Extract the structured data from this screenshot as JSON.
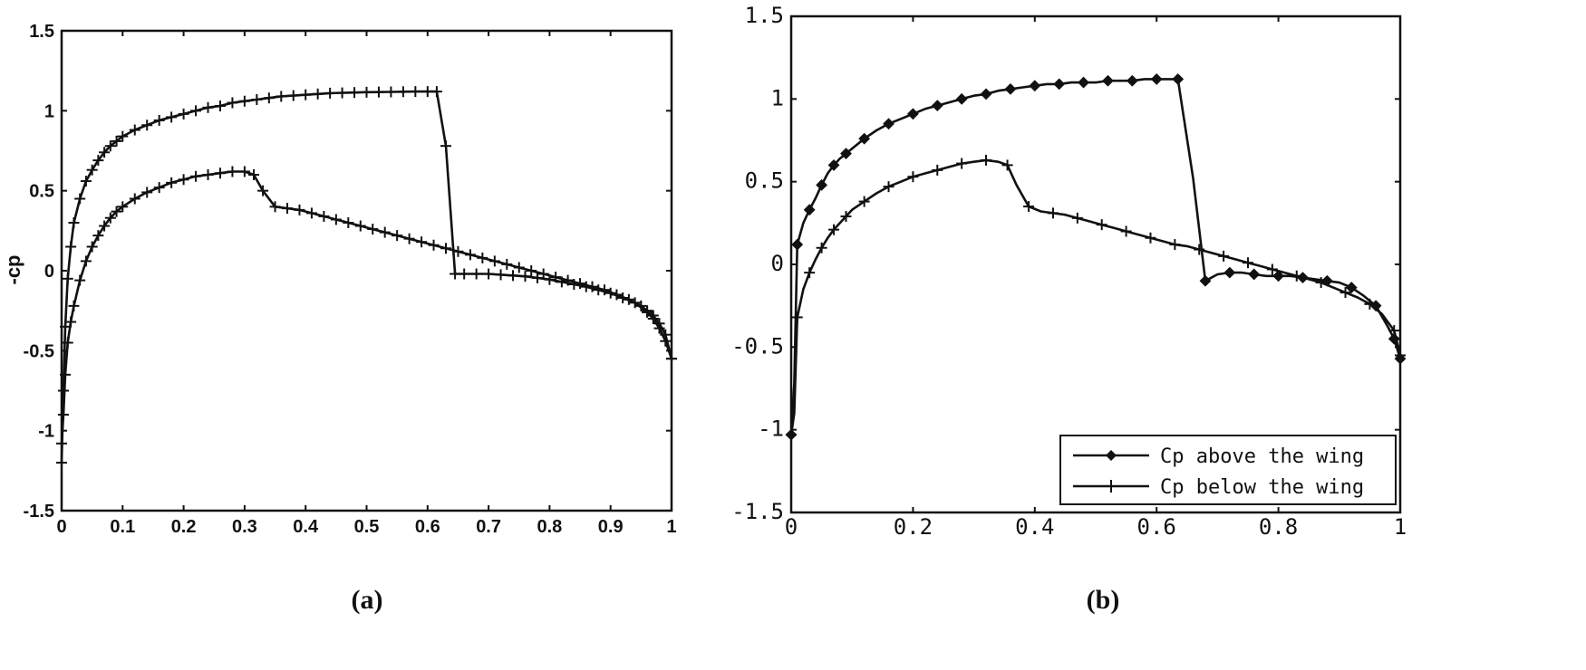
{
  "chart_data": [
    {
      "panel": "a",
      "caption": "(a)",
      "type": "line",
      "title": "",
      "xlabel": "",
      "ylabel": "-cp",
      "xlim": [
        0,
        1
      ],
      "ylim": [
        -1.5,
        1.5
      ],
      "xticks": [
        "0",
        "0.1",
        "0.2",
        "0.3",
        "0.4",
        "0.5",
        "0.6",
        "0.7",
        "0.8",
        "0.9",
        "1"
      ],
      "yticks": [
        "-1.5",
        "-1",
        "-0.5",
        "0",
        "0.5",
        "1",
        "1.5"
      ],
      "grid": false,
      "legend": null,
      "series": [
        {
          "marker": "+",
          "x": [
            0.0,
            0.003,
            0.006,
            0.01,
            0.015,
            0.02,
            0.03,
            0.04,
            0.05,
            0.06,
            0.07,
            0.08,
            0.09,
            0.1,
            0.12,
            0.14,
            0.16,
            0.18,
            0.2,
            0.22,
            0.24,
            0.26,
            0.28,
            0.3,
            0.32,
            0.34,
            0.36,
            0.38,
            0.4,
            0.42,
            0.44,
            0.46,
            0.48,
            0.5,
            0.52,
            0.54,
            0.56,
            0.58,
            0.6,
            0.615,
            0.63,
            0.645,
            0.66,
            0.68,
            0.7,
            0.72,
            0.74,
            0.76,
            0.78,
            0.8,
            0.82,
            0.84,
            0.86,
            0.88,
            0.9,
            0.92,
            0.94,
            0.96,
            0.97,
            0.98,
            0.99,
            1.0
          ],
          "y": [
            -1.2,
            -0.75,
            -0.35,
            -0.05,
            0.15,
            0.3,
            0.45,
            0.56,
            0.63,
            0.69,
            0.74,
            0.78,
            0.81,
            0.84,
            0.88,
            0.91,
            0.94,
            0.96,
            0.98,
            1.0,
            1.02,
            1.03,
            1.05,
            1.06,
            1.07,
            1.08,
            1.09,
            1.095,
            1.1,
            1.105,
            1.11,
            1.112,
            1.114,
            1.116,
            1.117,
            1.118,
            1.119,
            1.12,
            1.12,
            1.12,
            0.78,
            -0.02,
            -0.02,
            -0.02,
            -0.02,
            -0.025,
            -0.03,
            -0.035,
            -0.045,
            -0.055,
            -0.07,
            -0.085,
            -0.1,
            -0.12,
            -0.14,
            -0.17,
            -0.2,
            -0.26,
            -0.3,
            -0.36,
            -0.44,
            -0.55
          ]
        },
        {
          "marker": "+",
          "x": [
            0.0,
            0.003,
            0.006,
            0.01,
            0.015,
            0.02,
            0.03,
            0.04,
            0.05,
            0.06,
            0.07,
            0.08,
            0.09,
            0.1,
            0.12,
            0.14,
            0.16,
            0.18,
            0.2,
            0.22,
            0.24,
            0.26,
            0.28,
            0.3,
            0.315,
            0.33,
            0.35,
            0.37,
            0.39,
            0.41,
            0.43,
            0.45,
            0.47,
            0.49,
            0.51,
            0.53,
            0.55,
            0.57,
            0.59,
            0.61,
            0.63,
            0.65,
            0.67,
            0.69,
            0.71,
            0.73,
            0.75,
            0.77,
            0.79,
            0.81,
            0.83,
            0.85,
            0.87,
            0.89,
            0.91,
            0.93,
            0.95,
            0.96,
            0.97,
            0.98,
            0.99,
            1.0
          ],
          "y": [
            -1.08,
            -0.9,
            -0.65,
            -0.45,
            -0.32,
            -0.22,
            -0.06,
            0.06,
            0.15,
            0.22,
            0.28,
            0.33,
            0.37,
            0.4,
            0.45,
            0.49,
            0.52,
            0.55,
            0.57,
            0.59,
            0.6,
            0.61,
            0.62,
            0.62,
            0.6,
            0.5,
            0.4,
            0.39,
            0.38,
            0.36,
            0.34,
            0.32,
            0.3,
            0.28,
            0.26,
            0.24,
            0.22,
            0.2,
            0.18,
            0.16,
            0.14,
            0.12,
            0.1,
            0.08,
            0.06,
            0.04,
            0.02,
            0.0,
            -0.02,
            -0.04,
            -0.06,
            -0.08,
            -0.1,
            -0.12,
            -0.15,
            -0.18,
            -0.22,
            -0.25,
            -0.28,
            -0.33,
            -0.4,
            -0.55
          ]
        }
      ]
    },
    {
      "panel": "b",
      "caption": "(b)",
      "type": "line",
      "title": "",
      "xlabel": "",
      "ylabel": "",
      "xlim": [
        0,
        1
      ],
      "ylim": [
        -1.5,
        1.5
      ],
      "xticks": [
        "0",
        "0.2",
        "0.4",
        "0.6",
        "0.8",
        "1"
      ],
      "yticks": [
        "-1.5",
        "-1",
        "-0.5",
        "0",
        "0.5",
        "1",
        "1.5"
      ],
      "grid": false,
      "legend": {
        "position": "bottom-right",
        "entries": [
          "Cp above the wing",
          "Cp below the wing"
        ]
      },
      "series": [
        {
          "name": "Cp above the wing",
          "marker": "diamond",
          "x": [
            0.0,
            0.005,
            0.01,
            0.02,
            0.03,
            0.04,
            0.05,
            0.06,
            0.07,
            0.08,
            0.09,
            0.1,
            0.12,
            0.14,
            0.16,
            0.18,
            0.2,
            0.22,
            0.24,
            0.26,
            0.28,
            0.3,
            0.32,
            0.34,
            0.36,
            0.38,
            0.4,
            0.42,
            0.44,
            0.46,
            0.48,
            0.5,
            0.52,
            0.54,
            0.56,
            0.58,
            0.6,
            0.62,
            0.635,
            0.66,
            0.68,
            0.7,
            0.72,
            0.74,
            0.76,
            0.78,
            0.8,
            0.82,
            0.84,
            0.86,
            0.88,
            0.9,
            0.92,
            0.94,
            0.96,
            0.98,
            0.99,
            1.0
          ],
          "y": [
            -1.03,
            -0.72,
            0.12,
            0.25,
            0.33,
            0.4,
            0.48,
            0.55,
            0.6,
            0.64,
            0.67,
            0.7,
            0.76,
            0.81,
            0.85,
            0.88,
            0.91,
            0.94,
            0.96,
            0.98,
            1.0,
            1.02,
            1.03,
            1.05,
            1.06,
            1.07,
            1.08,
            1.09,
            1.09,
            1.1,
            1.1,
            1.1,
            1.11,
            1.11,
            1.11,
            1.12,
            1.12,
            1.12,
            1.12,
            0.52,
            -0.1,
            -0.06,
            -0.05,
            -0.05,
            -0.06,
            -0.07,
            -0.07,
            -0.07,
            -0.08,
            -0.09,
            -0.1,
            -0.11,
            -0.14,
            -0.19,
            -0.25,
            -0.38,
            -0.45,
            -0.57
          ]
        },
        {
          "name": "Cp below the wing",
          "marker": "+",
          "x": [
            0.0,
            0.005,
            0.01,
            0.02,
            0.03,
            0.04,
            0.05,
            0.06,
            0.07,
            0.08,
            0.09,
            0.1,
            0.12,
            0.14,
            0.16,
            0.18,
            0.2,
            0.22,
            0.24,
            0.26,
            0.28,
            0.3,
            0.32,
            0.34,
            0.355,
            0.37,
            0.39,
            0.41,
            0.43,
            0.45,
            0.47,
            0.49,
            0.51,
            0.53,
            0.55,
            0.57,
            0.59,
            0.61,
            0.63,
            0.65,
            0.67,
            0.69,
            0.71,
            0.73,
            0.75,
            0.77,
            0.79,
            0.81,
            0.83,
            0.85,
            0.87,
            0.89,
            0.91,
            0.93,
            0.95,
            0.97,
            0.99,
            1.0
          ],
          "y": [
            -1.03,
            -0.9,
            -0.32,
            -0.15,
            -0.05,
            0.03,
            0.1,
            0.16,
            0.21,
            0.25,
            0.29,
            0.33,
            0.38,
            0.43,
            0.47,
            0.5,
            0.53,
            0.55,
            0.57,
            0.59,
            0.61,
            0.62,
            0.63,
            0.62,
            0.6,
            0.48,
            0.35,
            0.32,
            0.31,
            0.3,
            0.28,
            0.26,
            0.24,
            0.22,
            0.2,
            0.18,
            0.16,
            0.14,
            0.12,
            0.11,
            0.09,
            0.07,
            0.05,
            0.03,
            0.01,
            -0.01,
            -0.03,
            -0.05,
            -0.07,
            -0.09,
            -0.11,
            -0.14,
            -0.17,
            -0.2,
            -0.24,
            -0.3,
            -0.4,
            -0.55
          ]
        }
      ]
    }
  ]
}
